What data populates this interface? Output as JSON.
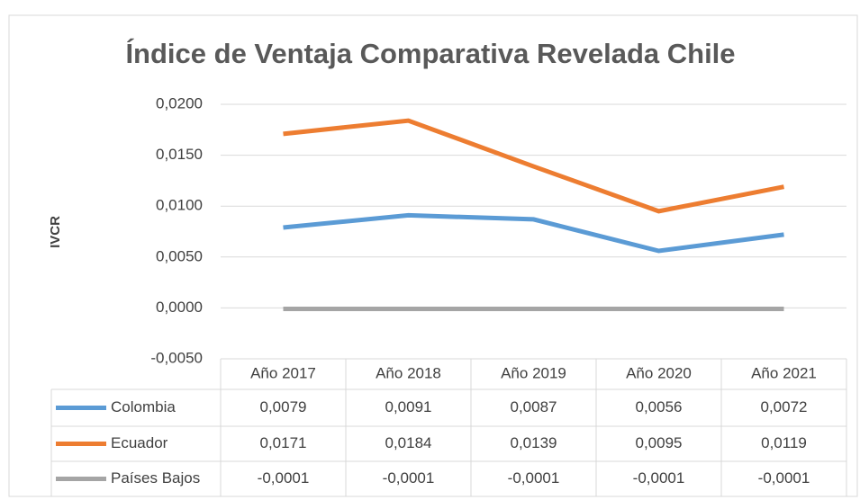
{
  "chart_data": {
    "type": "line",
    "title": "Índice de Ventaja Comparativa Revelada Chile",
    "y_label": "IVCR",
    "categories": [
      "Año 2017",
      "Año 2018",
      "Año 2019",
      "Año 2020",
      "Año 2021"
    ],
    "series": [
      {
        "name": "Colombia",
        "color": "#5b9bd5",
        "values": [
          0.0079,
          0.0091,
          0.0087,
          0.0056,
          0.0072
        ],
        "value_labels": [
          "0,0079",
          "0,0091",
          "0,0087",
          "0,0056",
          "0,0072"
        ]
      },
      {
        "name": "Ecuador",
        "color": "#ed7d31",
        "values": [
          0.0171,
          0.0184,
          0.0139,
          0.0095,
          0.0119
        ],
        "value_labels": [
          "0,0171",
          "0,0184",
          "0,0139",
          "0,0095",
          "0,0119"
        ]
      },
      {
        "name": "Países Bajos",
        "color": "#a5a5a5",
        "values": [
          -0.0001,
          -0.0001,
          -0.0001,
          -0.0001,
          -0.0001
        ],
        "value_labels": [
          "-0,0001",
          "-0,0001",
          "-0,0001",
          "-0,0001",
          "-0,0001"
        ]
      }
    ],
    "ylim": [
      -0.005,
      0.02
    ],
    "yticks": [
      {
        "value": -0.005,
        "label": "-0,0050"
      },
      {
        "value": 0,
        "label": "0,0000"
      },
      {
        "value": 0.005,
        "label": "0,0050"
      },
      {
        "value": 0.01,
        "label": "0,0100"
      },
      {
        "value": 0.015,
        "label": "0,0150"
      },
      {
        "value": 0.02,
        "label": "0,0200"
      }
    ],
    "grid": true,
    "legend": "table"
  }
}
